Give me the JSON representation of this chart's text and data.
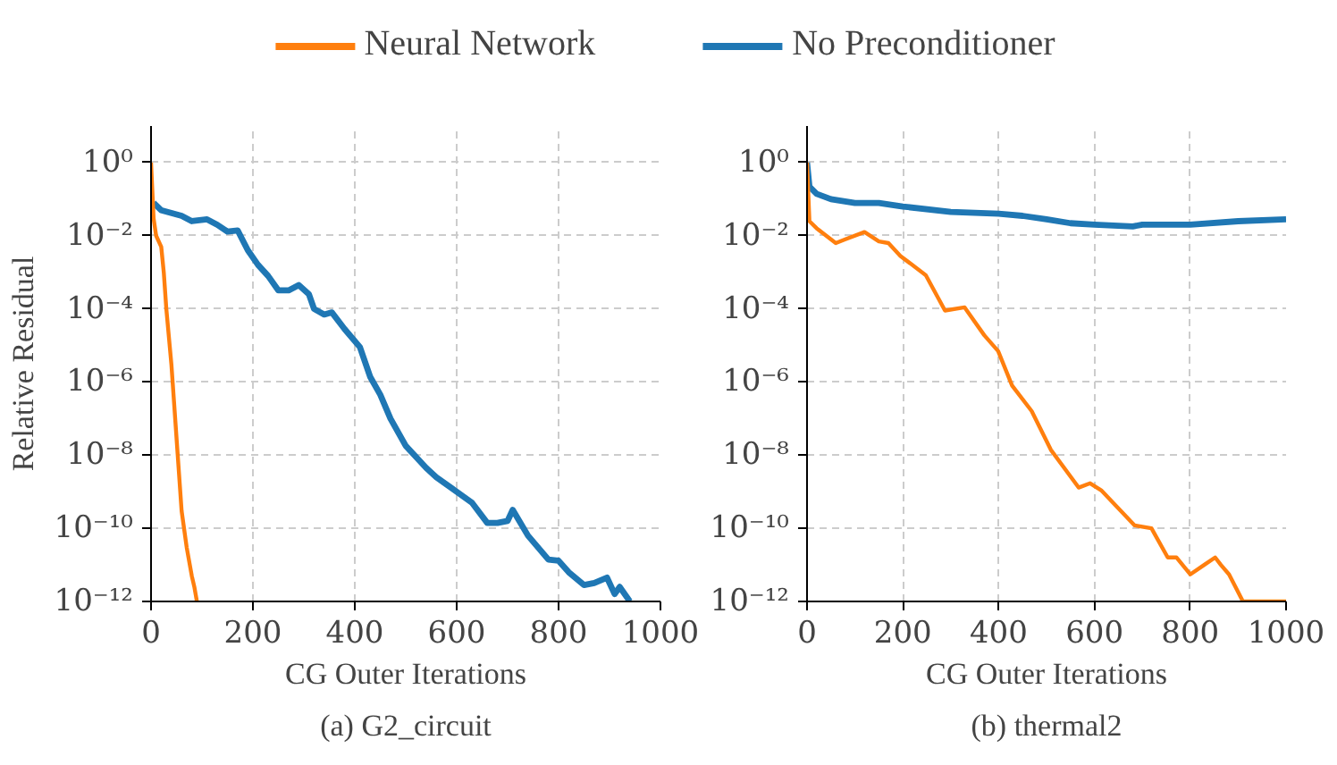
{
  "chart_data": [
    {
      "type": "line",
      "title": "(a) G2_circuit",
      "xlabel": "CG Outer Iterations",
      "ylabel": "Relative Residual",
      "log": "y",
      "grid": true,
      "legend": "top",
      "xlim": [
        0,
        1000
      ],
      "ylim": [
        1e-12,
        10
      ],
      "xticks": [
        0,
        200,
        400,
        600,
        800,
        1000
      ],
      "yticks": [
        {
          "value": 1e-12,
          "label": "10⁻¹²"
        },
        {
          "value": 1e-10,
          "label": "10⁻¹⁰"
        },
        {
          "value": 1e-08,
          "label": "10⁻⁸"
        },
        {
          "value": 1e-06,
          "label": "10⁻⁶"
        },
        {
          "value": 0.0001,
          "label": "10⁻⁴"
        },
        {
          "value": 0.01,
          "label": "10⁻²"
        },
        {
          "value": 1,
          "label": "10⁰"
        }
      ],
      "series": [
        {
          "name": "Neural Network",
          "color": "#ff7f0e",
          "x": [
            0,
            5,
            10,
            20,
            25,
            30,
            40,
            45,
            55,
            60,
            70,
            80,
            85,
            90
          ],
          "values": [
            1,
            0.03,
            0.01,
            0.005,
            0.001,
            0.0001,
            3e-06,
            3e-07,
            3e-09,
            3e-10,
            3e-11,
            5e-12,
            2.5e-12,
            1e-12
          ]
        },
        {
          "name": "No Preconditioner",
          "color": "#1f77b4",
          "x": [
            5,
            20,
            60,
            80,
            110,
            130,
            150,
            170,
            190,
            210,
            230,
            250,
            270,
            290,
            310,
            320,
            340,
            355,
            380,
            410,
            430,
            450,
            470,
            500,
            540,
            560,
            600,
            630,
            660,
            680,
            700,
            710,
            740,
            780,
            800,
            820,
            850,
            870,
            895,
            910,
            920,
            940
          ],
          "values": [
            0.079,
            0.05,
            0.035,
            0.025,
            0.028,
            0.02,
            0.013,
            0.014,
            0.004,
            0.0016,
            0.00079,
            0.00032,
            0.00032,
            0.00045,
            0.00025,
            0.0001,
            7e-05,
            8e-05,
            2.8e-05,
            9e-06,
            1.4e-06,
            4.5e-07,
            1e-07,
            1.8e-08,
            4.5e-09,
            2.5e-09,
            1e-09,
            5e-10,
            1.4e-10,
            1.4e-10,
            1.6e-10,
            3.2e-10,
            6.3e-11,
            1.4e-11,
            1.3e-11,
            6.3e-12,
            2.8e-12,
            3.2e-12,
            4.5e-12,
            1.6e-12,
            2.5e-12,
            1e-12
          ]
        }
      ]
    },
    {
      "type": "line",
      "title": "(b) thermal2",
      "xlabel": "CG Outer Iterations",
      "log": "y",
      "grid": true,
      "xlim": [
        0,
        1000
      ],
      "ylim": [
        1e-12,
        10
      ],
      "xticks": [
        0,
        200,
        400,
        600,
        800,
        1000
      ],
      "yticks": [
        {
          "value": 1e-12,
          "label": "10⁻¹²"
        },
        {
          "value": 1e-10,
          "label": "10⁻¹⁰"
        },
        {
          "value": 1e-08,
          "label": "10⁻⁸"
        },
        {
          "value": 1e-06,
          "label": "10⁻⁶"
        },
        {
          "value": 0.0001,
          "label": "10⁻⁴"
        },
        {
          "value": 0.01,
          "label": "10⁻²"
        },
        {
          "value": 1,
          "label": "10⁰"
        }
      ],
      "series": [
        {
          "color": "#ff7f0e",
          "x": [
            0,
            5,
            20,
            60,
            80,
            120,
            150,
            170,
            195,
            248,
            288,
            329,
            370,
            399,
            428,
            469,
            509,
            567,
            591,
            614,
            684,
            719,
            753,
            771,
            800,
            829,
            852,
            864,
            881,
            910,
            1000
          ],
          "values": [
            1,
            0.025,
            0.016,
            0.0063,
            0.008,
            0.0126,
            0.007,
            0.0063,
            0.0028,
            0.00083,
            9e-05,
            0.00011,
            1.9e-05,
            7e-06,
            8e-07,
            1.6e-07,
            1.4e-08,
            1.3e-09,
            1.7e-09,
            1.1e-09,
            1.2e-10,
            1e-10,
            1.6e-11,
            1.6e-11,
            5.5e-12,
            1e-11,
            1.6e-11,
            1e-11,
            5.5e-12,
            1e-12,
            1e-12
          ]
        },
        {
          "color": "#1f77b4",
          "x": [
            0,
            5,
            20,
            50,
            100,
            150,
            200,
            300,
            400,
            450,
            500,
            550,
            600,
            680,
            700,
            800,
            900,
            1000
          ],
          "values": [
            1,
            0.22,
            0.14,
            0.1,
            0.079,
            0.079,
            0.063,
            0.045,
            0.04,
            0.035,
            0.028,
            0.022,
            0.02,
            0.018,
            0.02,
            0.02,
            0.025,
            0.028
          ]
        }
      ]
    }
  ]
}
